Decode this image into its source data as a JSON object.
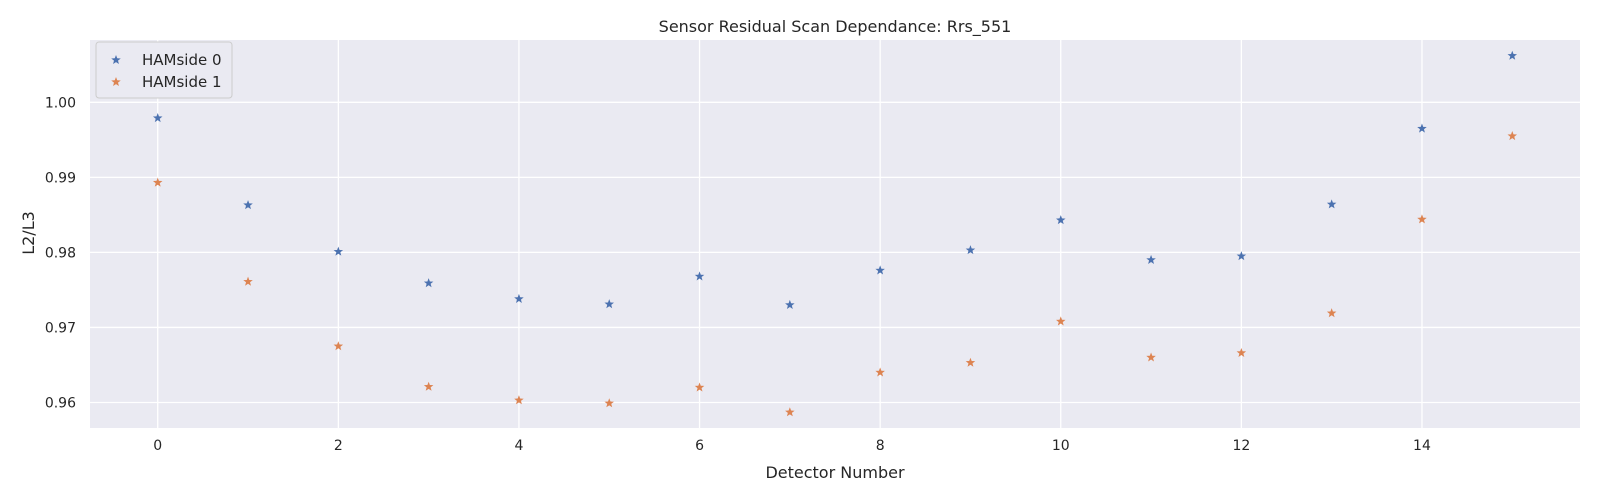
{
  "chart_data": {
    "type": "scatter",
    "title": "Sensor Residual Scan Dependance: Rrs_551",
    "xlabel": "Detector Number",
    "ylabel": "L2/L3",
    "xlim": [
      -0.75,
      15.75
    ],
    "ylim": [
      0.9566,
      1.0083
    ],
    "x_ticks": [
      0,
      2,
      4,
      6,
      8,
      10,
      12,
      14
    ],
    "y_ticks": [
      0.96,
      0.97,
      0.98,
      0.99,
      1.0
    ],
    "x_tick_labels": [
      "0",
      "2",
      "4",
      "6",
      "8",
      "10",
      "12",
      "14"
    ],
    "y_tick_labels": [
      "0.96",
      "0.97",
      "0.98",
      "0.99",
      "1.00"
    ],
    "grid": true,
    "legend_position": "top-left",
    "marker": "star",
    "x": [
      0,
      1,
      2,
      3,
      4,
      5,
      6,
      7,
      8,
      9,
      10,
      11,
      12,
      13,
      14,
      15
    ],
    "series": [
      {
        "name": "HAMside 0",
        "color": "#4c72b0",
        "values": [
          0.9979,
          0.9863,
          0.9801,
          0.9759,
          0.9738,
          0.9731,
          0.9768,
          0.973,
          0.9776,
          0.9803,
          0.9843,
          0.979,
          0.9795,
          0.9864,
          0.9965,
          1.0062
        ]
      },
      {
        "name": "HAMside 1",
        "color": "#dd8452",
        "values": [
          0.9893,
          0.9761,
          0.9675,
          0.9621,
          0.9603,
          0.9599,
          0.962,
          0.9587,
          0.964,
          0.9653,
          0.9708,
          0.966,
          0.9666,
          0.9719,
          0.9844,
          0.9955
        ]
      }
    ]
  }
}
